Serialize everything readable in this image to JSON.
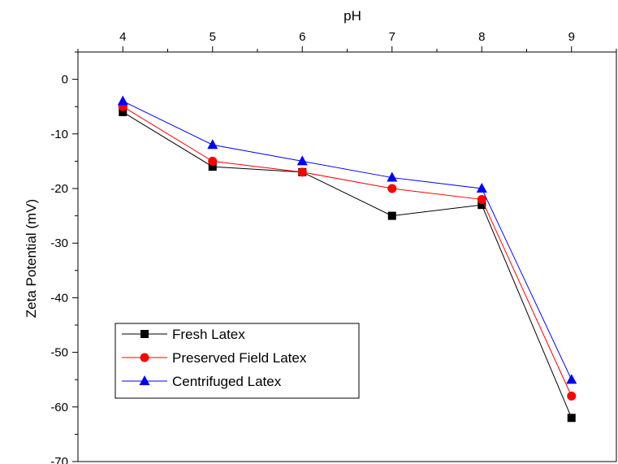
{
  "chart_data": {
    "type": "line",
    "title": "",
    "xlabel": "pH",
    "ylabel": "Zeta Potential (mV)",
    "x": [
      4,
      5,
      6,
      7,
      8,
      9
    ],
    "xlim": [
      3.5,
      9.5
    ],
    "ylim": [
      -70,
      5
    ],
    "x_ticks": [
      4,
      5,
      6,
      7,
      8,
      9
    ],
    "y_ticks": [
      0,
      -10,
      -20,
      -30,
      -40,
      -50,
      -60,
      -70
    ],
    "x_axis_position": "top",
    "grid": false,
    "legend_position": "bottom-left",
    "series": [
      {
        "name": "Fresh Latex",
        "color": "#000000",
        "marker": "square",
        "values": [
          -6,
          -16,
          -17,
          -25,
          -23,
          -62
        ]
      },
      {
        "name": "Preserved Field Latex",
        "color": "#ff0000",
        "marker": "circle",
        "values": [
          -5,
          -15,
          -17,
          -20,
          -22,
          -58
        ]
      },
      {
        "name": "Centrifuged Latex",
        "color": "#0000ff",
        "marker": "triangle",
        "values": [
          -4,
          -12,
          -15,
          -18,
          -20,
          -55
        ]
      }
    ]
  }
}
